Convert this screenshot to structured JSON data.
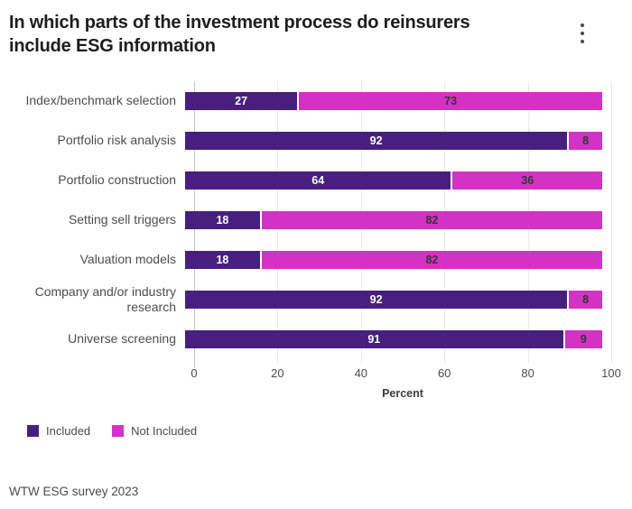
{
  "header": {
    "title": "In which parts of the investment process do reinsurers include ESG information",
    "menu_icon": "kebab-menu"
  },
  "chart_data": {
    "type": "bar",
    "orientation": "horizontal",
    "stacked": true,
    "title": "In which parts of the investment process do reinsurers include ESG information",
    "categories": [
      "Index/benchmark selection",
      "Portfolio risk analysis",
      "Portfolio construction",
      "Setting sell triggers",
      "Valuation models",
      "Company and/or industry research",
      "Universe screening"
    ],
    "series": [
      {
        "name": "Included",
        "color": "#481F7E",
        "label_color": "#ffffff",
        "values": [
          27,
          92,
          64,
          18,
          18,
          92,
          91
        ]
      },
      {
        "name": "Not Included",
        "color": "#D233C3",
        "label_color": "#343434",
        "values": [
          73,
          8,
          36,
          82,
          82,
          8,
          9
        ]
      }
    ],
    "xlabel": "Percent",
    "xlim": [
      0,
      100
    ],
    "xticks": [
      0,
      20,
      40,
      60,
      80,
      100
    ],
    "grid": "vertical",
    "legend_position": "bottom-left",
    "value_labels": true
  },
  "footer": {
    "source": "WTW ESG survey 2023"
  }
}
